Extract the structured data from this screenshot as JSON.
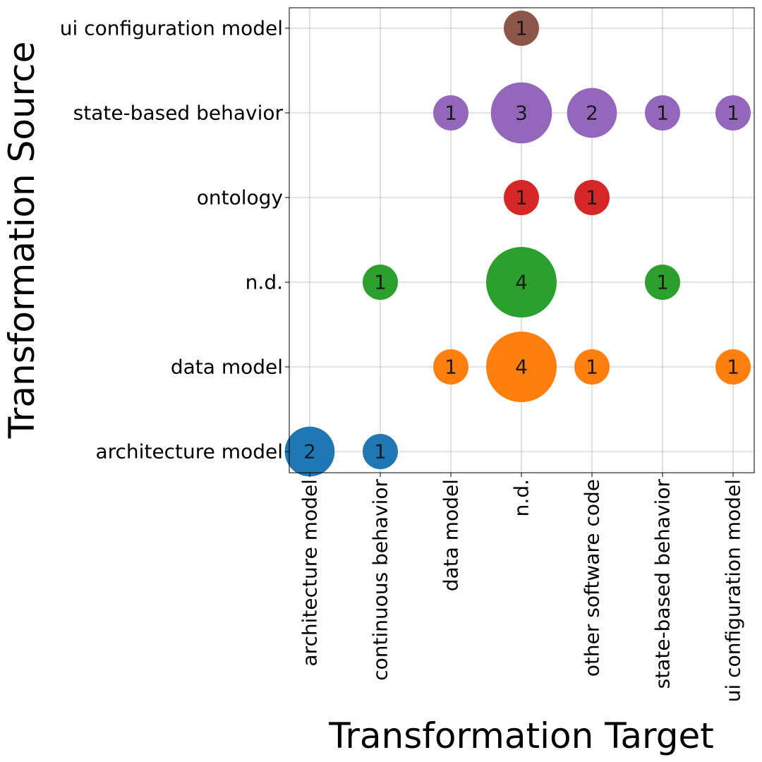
{
  "chart_data": {
    "type": "scatter",
    "subtype": "bubble",
    "xlabel": "Transformation Target",
    "ylabel": "Transformation Source",
    "x_categories": [
      "architecture model",
      "continuous behavior",
      "data model",
      "n.d.",
      "other software code",
      "state-based behavior",
      "ui configuration model"
    ],
    "y_categories": [
      "architecture model",
      "data model",
      "n.d.",
      "ontology",
      "state-based behavior",
      "ui configuration model"
    ],
    "grid": true,
    "series": [
      {
        "source": "architecture model",
        "color": "#1f77b4",
        "points": [
          {
            "target": "architecture model",
            "count": 2
          },
          {
            "target": "continuous behavior",
            "count": 1
          }
        ]
      },
      {
        "source": "data model",
        "color": "#ff7f0e",
        "points": [
          {
            "target": "data model",
            "count": 1
          },
          {
            "target": "n.d.",
            "count": 4
          },
          {
            "target": "other software code",
            "count": 1
          },
          {
            "target": "ui configuration model",
            "count": 1
          }
        ]
      },
      {
        "source": "n.d.",
        "color": "#2ca02c",
        "points": [
          {
            "target": "continuous behavior",
            "count": 1
          },
          {
            "target": "n.d.",
            "count": 4
          },
          {
            "target": "state-based behavior",
            "count": 1
          }
        ]
      },
      {
        "source": "ontology",
        "color": "#d62728",
        "points": [
          {
            "target": "n.d.",
            "count": 1
          },
          {
            "target": "other software code",
            "count": 1
          }
        ]
      },
      {
        "source": "state-based behavior",
        "color": "#9467bd",
        "points": [
          {
            "target": "data model",
            "count": 1
          },
          {
            "target": "n.d.",
            "count": 3
          },
          {
            "target": "other software code",
            "count": 2
          },
          {
            "target": "state-based behavior",
            "count": 1
          },
          {
            "target": "ui configuration model",
            "count": 1
          }
        ]
      },
      {
        "source": "ui configuration model",
        "color": "#8c564b",
        "points": [
          {
            "target": "n.d.",
            "count": 1
          }
        ]
      }
    ]
  }
}
